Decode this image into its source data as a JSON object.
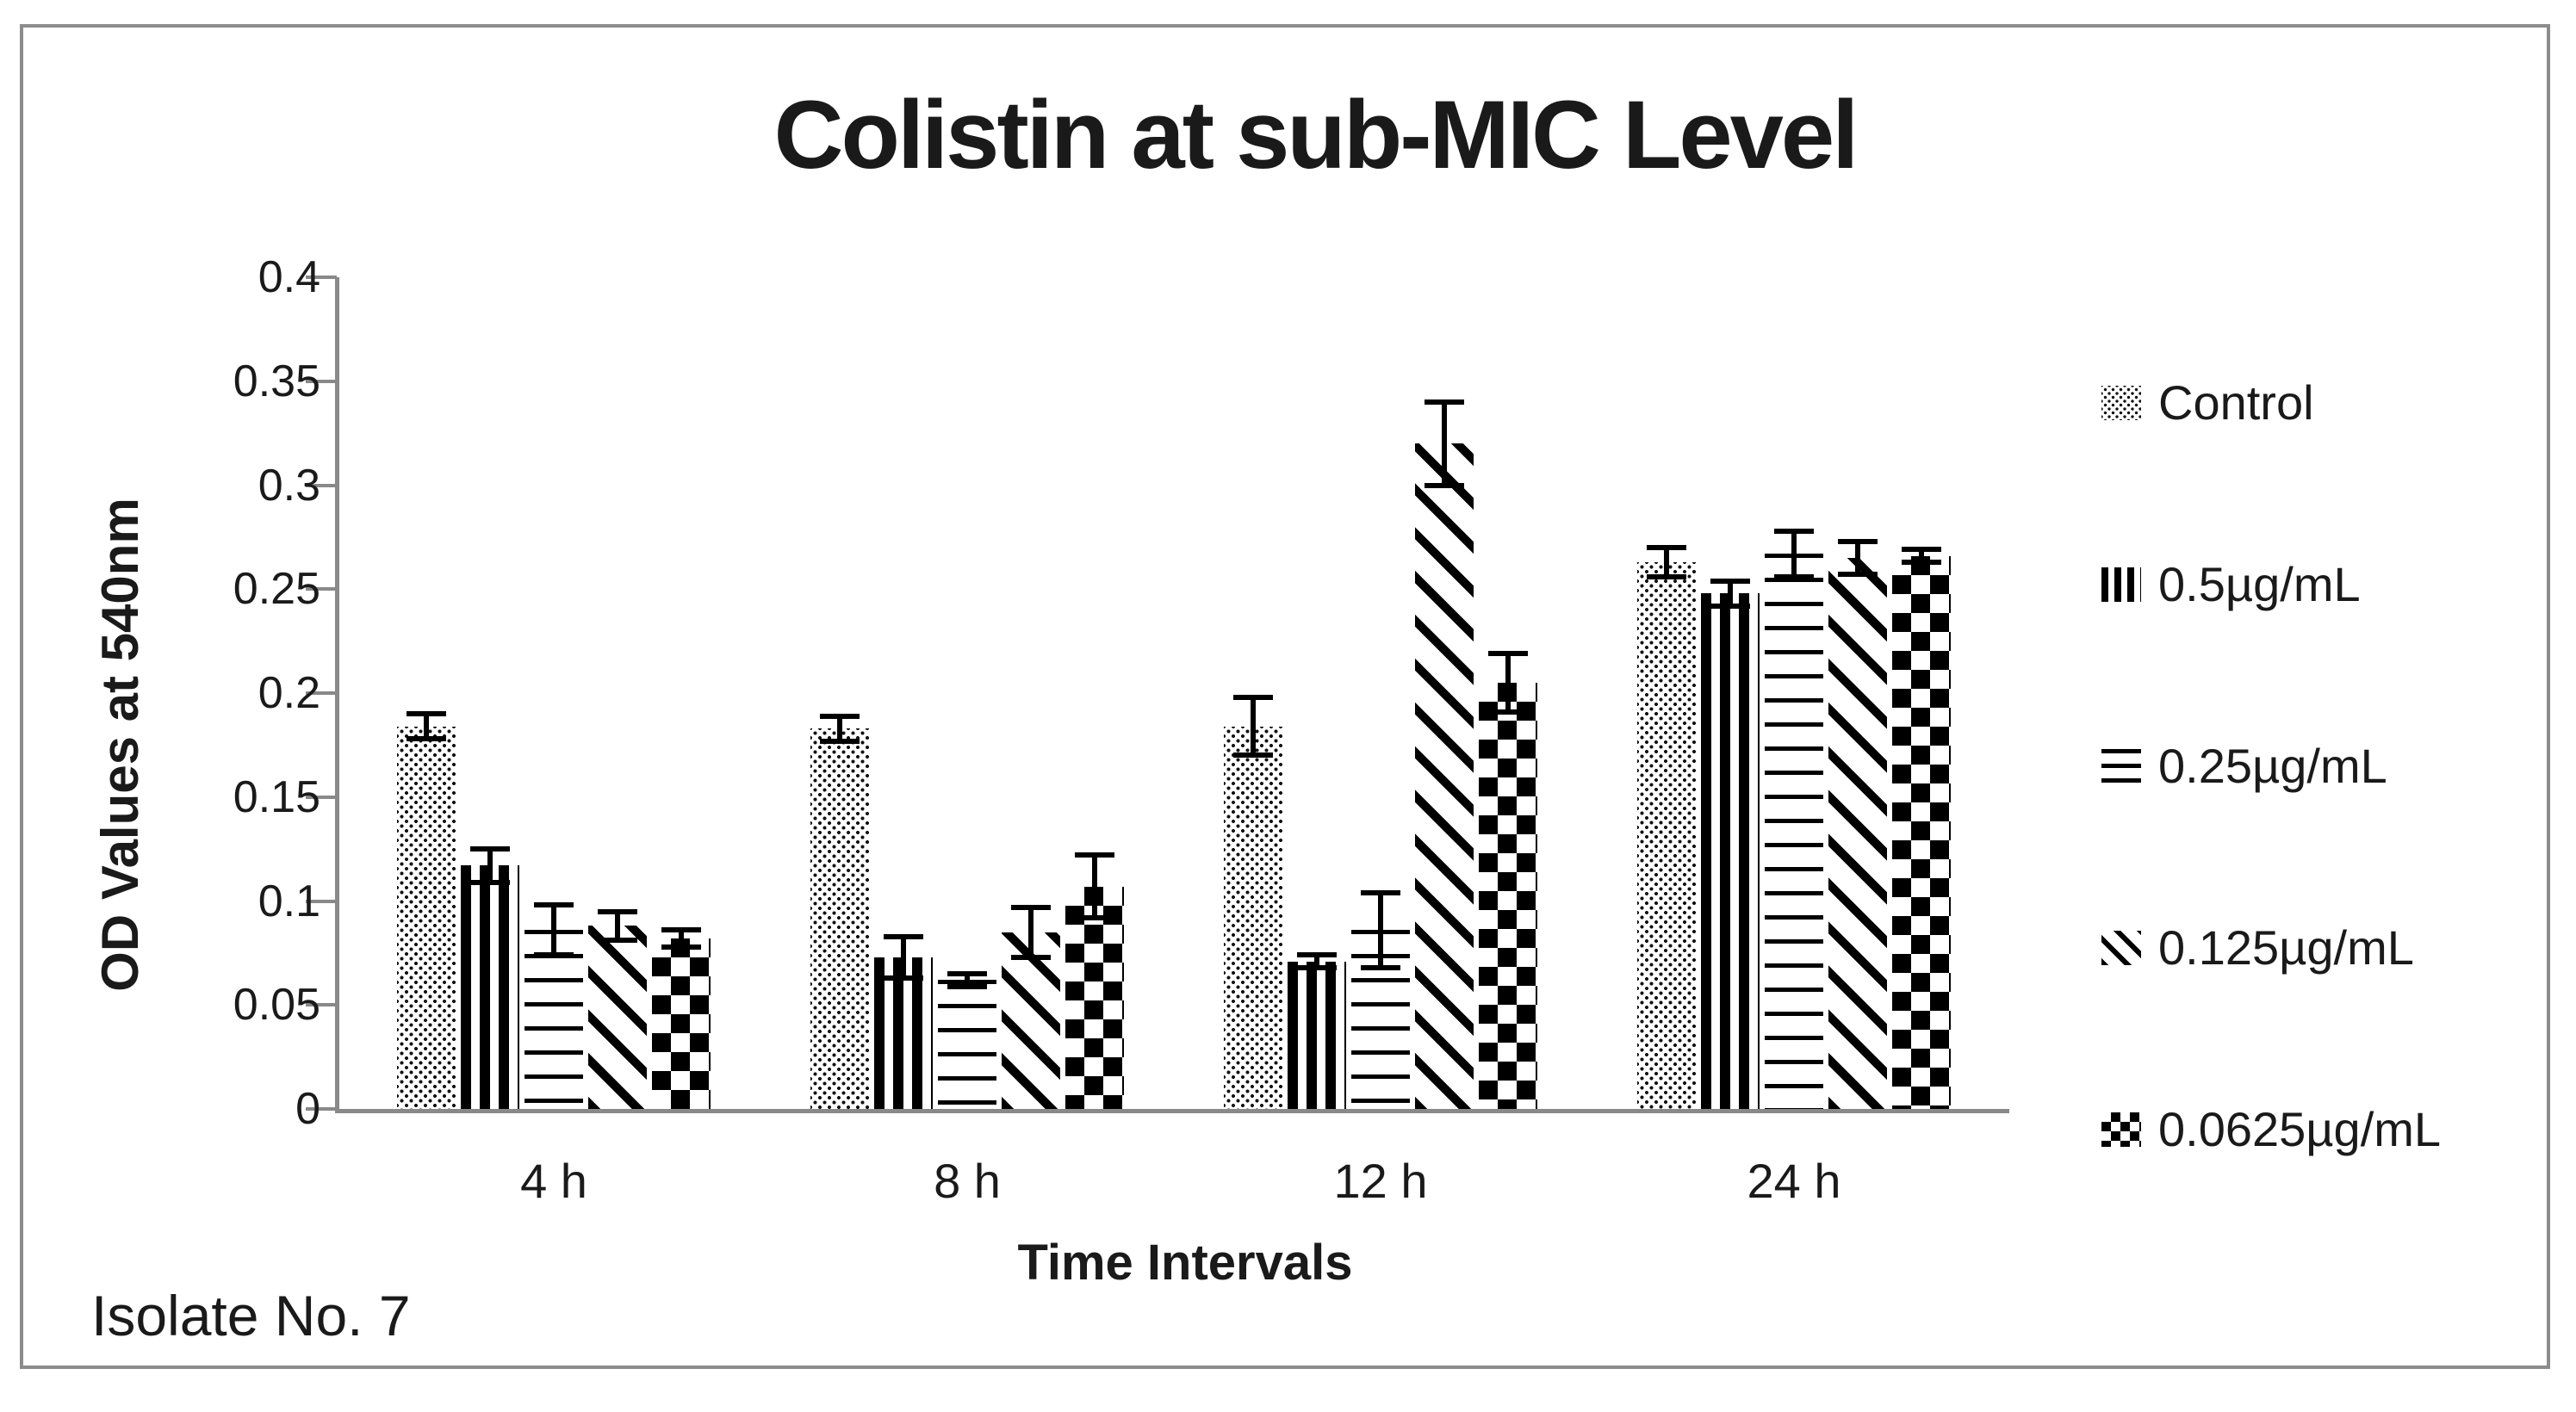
{
  "title": "Colistin at sub-MIC Level",
  "footnote": "Isolate No. 7",
  "colors": {
    "pattern": "#000000",
    "axis": "#898989",
    "text": "#1a1a1a",
    "background": "#ffffff"
  },
  "chart_data": {
    "type": "bar",
    "title": "Colistin at sub-MIC Level",
    "xlabel": "Time Intervals",
    "ylabel": "OD Values at 540nm",
    "footnote": "Isolate No. 7",
    "categories": [
      "4 h",
      "8 h",
      "12 h",
      "24 h"
    ],
    "ylim": [
      0,
      0.4
    ],
    "ytick_step": 0.05,
    "yticks": [
      "0.4",
      "0.35",
      "0.3",
      "0.25",
      "0.2",
      "0.15",
      "0.1",
      "0.05",
      "0"
    ],
    "grid": false,
    "error_bars": true,
    "legend_position": "right",
    "series": [
      {
        "name": "Control",
        "pattern": "dots",
        "values": [
          0.184,
          0.183,
          0.184,
          0.263
        ],
        "errors": [
          0.006,
          0.006,
          0.014,
          0.007
        ]
      },
      {
        "name": "0.5µg/mL",
        "pattern": "vertical-stripes",
        "values": [
          0.117,
          0.073,
          0.071,
          0.248
        ],
        "errors": [
          0.008,
          0.01,
          0.003,
          0.006
        ]
      },
      {
        "name": "0.25µg/mL",
        "pattern": "horizontal-lines",
        "values": [
          0.086,
          0.062,
          0.086,
          0.267
        ],
        "errors": [
          0.012,
          0.003,
          0.018,
          0.011
        ]
      },
      {
        "name": "0.125µg/mL",
        "pattern": "diagonal-stripes",
        "values": [
          0.088,
          0.085,
          0.32,
          0.265
        ],
        "errors": [
          0.007,
          0.012,
          0.02,
          0.008
        ]
      },
      {
        "name": "0.0625µg/mL",
        "pattern": "checkerboard",
        "values": [
          0.082,
          0.107,
          0.205,
          0.266
        ],
        "errors": [
          0.004,
          0.015,
          0.014,
          0.003
        ]
      }
    ]
  }
}
